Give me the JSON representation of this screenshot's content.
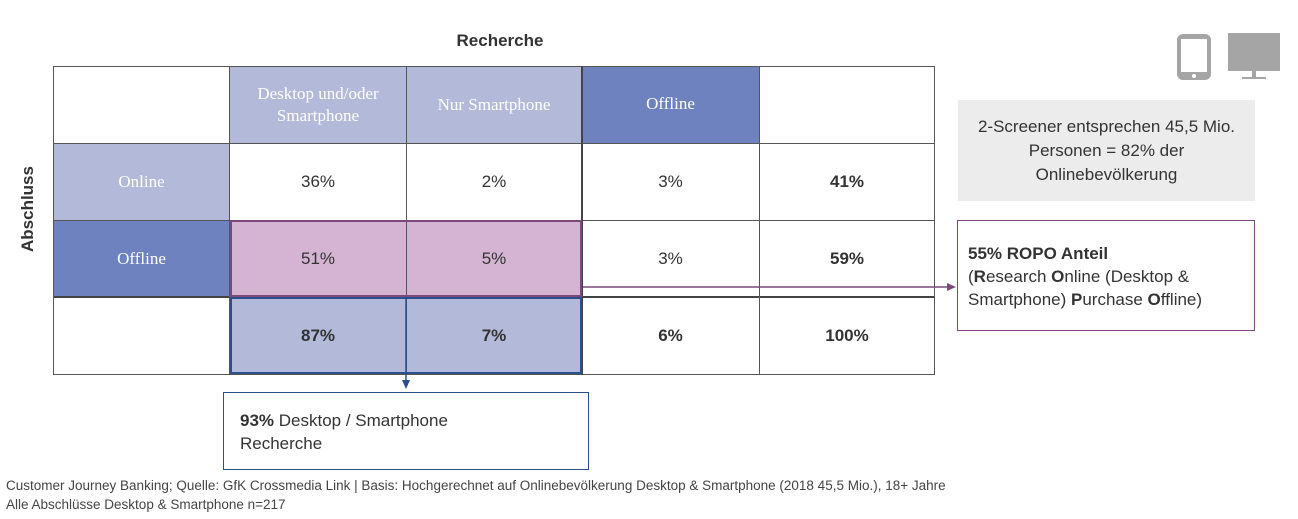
{
  "chart_data": {
    "type": "table",
    "title": "Recherche",
    "row_axis_label": "Abschluss",
    "columns": [
      "Desktop und/oder Smartphone",
      "Nur Smartphone",
      "Offline",
      ""
    ],
    "rows": [
      {
        "label": "Online",
        "values": [
          "36%",
          "2%",
          "3%",
          "41%"
        ]
      },
      {
        "label": "Offline",
        "values": [
          "51%",
          "5%",
          "3%",
          "59%"
        ]
      },
      {
        "label": "",
        "values": [
          "87%",
          "7%",
          "6%",
          "100%"
        ]
      }
    ]
  },
  "callouts": {
    "screener": "2-Screener entsprechen 45,5 Mio. Personen = 82% der Onlinebevölkerung",
    "ropo_title": "55% ROPO Anteil",
    "ropo_line1_open": "(",
    "ropo_R": "R",
    "ropo_esearch": "esearch ",
    "ropo_O": "O",
    "ropo_nline": "nline (Desktop &",
    "ropo_line2_a": "Smartphone) ",
    "ropo_P": "P",
    "ropo_urchase": "urchase ",
    "ropo_O2": "O",
    "ropo_ffline": "ffline)",
    "desktop_pct": "93%",
    "desktop_text": " Desktop / Smartphone",
    "desktop_text2": "Recherche"
  },
  "footer": {
    "line1": "Customer Journey Banking; Quelle: GfK Crossmedia Link | Basis: Hochgerechnet auf Onlinebevölkerung Desktop & Smartphone (2018 45,5 Mio.), 18+ Jahre",
    "line2": "Alle Abschlüsse Desktop & Smartphone n=217"
  },
  "icons": {
    "phone": "smartphone-icon",
    "monitor": "monitor-icon"
  },
  "colors": {
    "light": "#b3b9d9",
    "dark": "#6d82bf",
    "pink": "#d4b3d3",
    "accent": "#7b4a7a",
    "blue_line": "#2a4f8c"
  }
}
